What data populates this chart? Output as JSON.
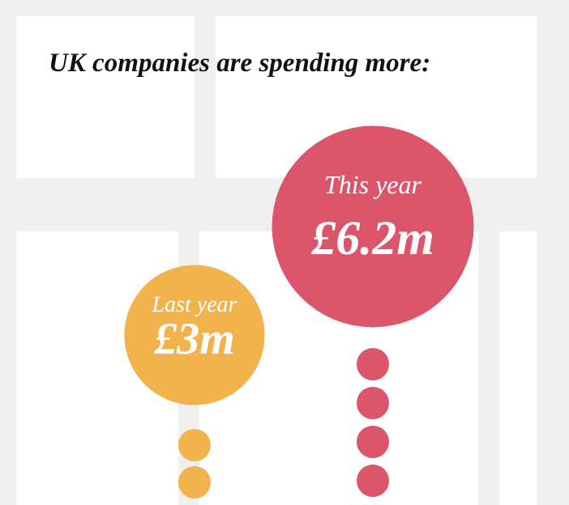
{
  "chart_data": {
    "type": "other",
    "title": "UK companies are spending more:",
    "categories": [
      "Last year",
      "This year"
    ],
    "values": [
      3,
      6.2
    ],
    "value_labels": [
      "£3m",
      "£6.2m"
    ],
    "colors": [
      "#f2b24c",
      "#dc566b"
    ]
  }
}
